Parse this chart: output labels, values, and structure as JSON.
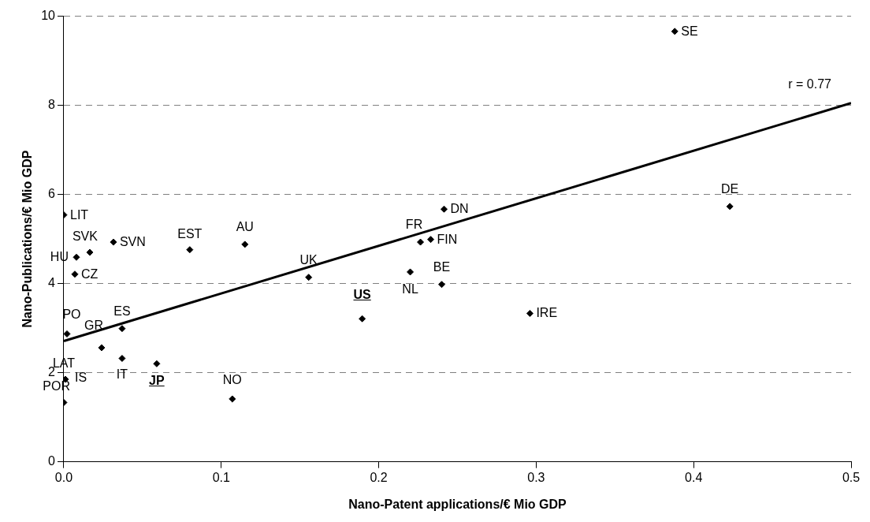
{
  "chart_data": {
    "type": "scatter",
    "xlabel": "Nano-Patent applications/€ Mio GDP",
    "ylabel": "Nano-Publications/€ Mio GDP",
    "xlim": [
      0,
      0.5
    ],
    "xticks": [
      {
        "value": 0,
        "label": "0.0"
      },
      0.1,
      0.2,
      0.3,
      0.4,
      0.5
    ],
    "ylim": [
      0,
      10
    ],
    "yticks": [
      0,
      2,
      4,
      6,
      8,
      10
    ],
    "grid": "y",
    "legend": false,
    "series": [
      {
        "type": "scatter",
        "color": "#000000",
        "marker": "diamond",
        "x": [
          0.0,
          0.0165,
          0.0315,
          0.008,
          0.007,
          0.08,
          0.115,
          0.1555,
          0.002,
          0.037,
          0.024,
          0.037,
          0.059,
          null,
          0.001,
          0.0,
          0.107,
          0.2415,
          0.2265,
          0.233,
          0.22,
          0.24,
          0.1895,
          0.296,
          0.388,
          0.423
        ],
        "values": [
          5.54,
          4.7,
          4.93,
          4.59,
          4.21,
          4.76,
          4.88,
          4.14,
          2.87,
          2.99,
          2.56,
          2.32,
          2.2,
          null,
          1.85,
          1.33,
          1.41,
          5.67,
          4.93,
          4.99,
          4.26,
          3.98,
          3.21,
          3.33,
          9.66,
          5.73
        ]
      },
      {
        "type": "line",
        "color": "#000000",
        "marker": "none",
        "line_style": "solid",
        "x": [
          0,
          0.5
        ],
        "values": [
          2.71,
          8.05
        ]
      }
    ],
    "annotations": [
      {
        "text": "LIT",
        "x": 0.0,
        "y": 5.54
      },
      {
        "text": "SVK",
        "x": 0.0165,
        "y": 4.7
      },
      {
        "text": "SVN",
        "x": 0.0315,
        "y": 4.93
      },
      {
        "text": "HU",
        "x": 0.008,
        "y": 4.59
      },
      {
        "text": "CZ",
        "x": 0.007,
        "y": 4.21
      },
      {
        "text": "EST",
        "x": 0.08,
        "y": 4.76
      },
      {
        "text": "AU",
        "x": 0.115,
        "y": 4.88
      },
      {
        "text": "UK",
        "x": 0.1555,
        "y": 4.14
      },
      {
        "text": "PO",
        "x": 0.002,
        "y": 2.87
      },
      {
        "text": "ES",
        "x": 0.037,
        "y": 2.99
      },
      {
        "text": "GR",
        "x": 0.024,
        "y": 2.56
      },
      {
        "text": "IT",
        "x": 0.037,
        "y": 2.32
      },
      {
        "text": "JP",
        "x": 0.059,
        "y": 2.2
      },
      {
        "text": "LAT",
        "x": 0.0,
        "y": 1.86
      },
      {
        "text": "IS",
        "x": 0.001,
        "y": 1.85
      },
      {
        "text": "POR",
        "x": 0.0,
        "y": 1.33
      },
      {
        "text": "NO",
        "x": 0.107,
        "y": 1.41
      },
      {
        "text": "DN",
        "x": 0.2415,
        "y": 5.67
      },
      {
        "text": "FR",
        "x": 0.2265,
        "y": 4.93
      },
      {
        "text": "FIN",
        "x": 0.233,
        "y": 4.99
      },
      {
        "text": "NL",
        "x": 0.22,
        "y": 4.26
      },
      {
        "text": "BE",
        "x": 0.24,
        "y": 3.98
      },
      {
        "text": "US",
        "x": 0.1895,
        "y": 3.21
      },
      {
        "text": "IRE",
        "x": 0.296,
        "y": 3.33
      },
      {
        "text": "SE",
        "x": 0.388,
        "y": 9.66
      },
      {
        "text": "DE",
        "x": 0.423,
        "y": 5.73
      },
      {
        "text": "r = 0.77",
        "x": 0.5,
        "y": 8.05
      }
    ]
  }
}
